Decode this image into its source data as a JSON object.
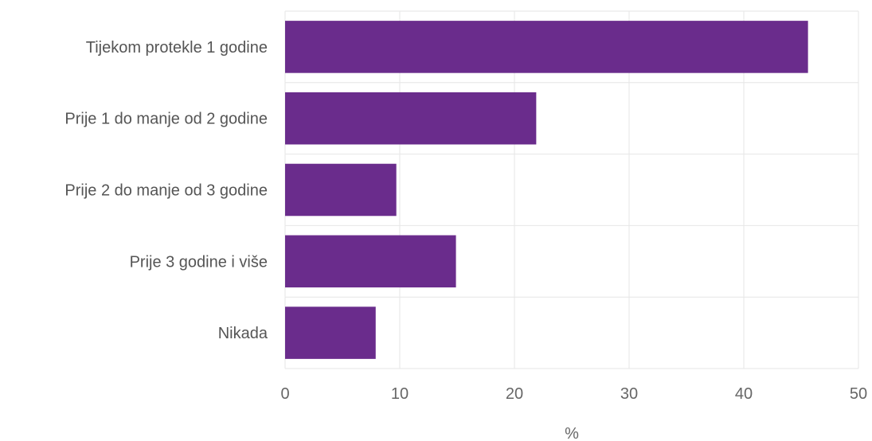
{
  "chart_data": {
    "type": "bar",
    "orientation": "horizontal",
    "categories": [
      "Tijekom protekle 1 godine",
      "Prije 1 do manje od 2 godine",
      "Prije 2 do manje od 3 godine",
      "Prije 3 godine i više",
      "Nikada"
    ],
    "values": [
      45.6,
      21.9,
      9.7,
      14.9,
      7.9
    ],
    "xlabel": "%",
    "ylabel": "",
    "xlim": [
      0,
      50
    ],
    "xticks": [
      "0",
      "10",
      "20",
      "30",
      "40",
      "50"
    ],
    "grid": true,
    "bar_color": "#6a2c8c",
    "grid_color": "#e6e6e6"
  }
}
